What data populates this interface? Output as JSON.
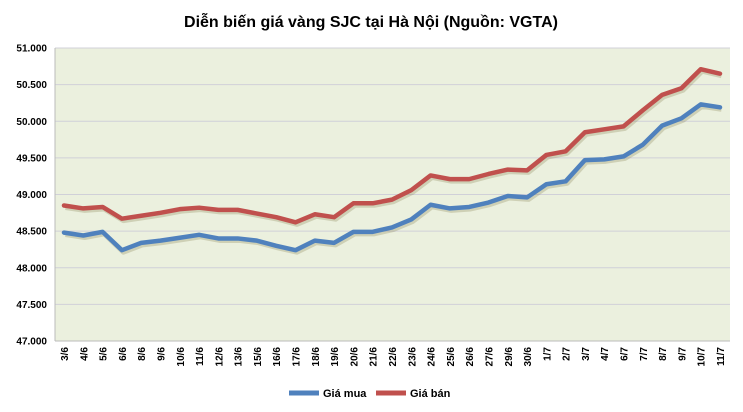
{
  "chart_data": {
    "type": "line",
    "title": "Diễn biến giá vàng SJC tại Hà Nội (Nguồn: VGTA)",
    "xlabel": "",
    "ylabel": "",
    "ylim": [
      47000,
      51000
    ],
    "yticks": [
      "47.000",
      "47.500",
      "48.000",
      "48.500",
      "49.000",
      "49.500",
      "50.000",
      "50.500",
      "51.000"
    ],
    "grid": true,
    "legend_position": "bottom",
    "plot_background": "#ebf0de",
    "categories": [
      "3/6",
      "4/6",
      "5/6",
      "6/6",
      "8/6",
      "9/6",
      "10/6",
      "11/6",
      "12/6",
      "13/6",
      "15/6",
      "16/6",
      "17/6",
      "18/6",
      "19/6",
      "20/6",
      "21/6",
      "22/6",
      "23/6",
      "24/6",
      "25/6",
      "26/6",
      "27/6",
      "29/6",
      "30/6",
      "1/7",
      "2/7",
      "3/7",
      "4/7",
      "6/7",
      "7/7",
      "8/7",
      "9/7",
      "10/7",
      "11/7"
    ],
    "series": [
      {
        "name": "Giá mua",
        "color": "#4f81bd",
        "values": [
          48480,
          48440,
          48490,
          48240,
          48340,
          48370,
          48410,
          48450,
          48400,
          48400,
          48370,
          48300,
          48240,
          48370,
          48340,
          48490,
          48490,
          48550,
          48660,
          48860,
          48810,
          48830,
          48890,
          48980,
          48960,
          49140,
          49180,
          49470,
          49480,
          49520,
          49680,
          49940,
          50040,
          50230,
          50190
        ]
      },
      {
        "name": "Giá bán",
        "color": "#c0504d",
        "values": [
          48850,
          48810,
          48830,
          48670,
          48710,
          48750,
          48800,
          48820,
          48790,
          48790,
          48740,
          48690,
          48620,
          48730,
          48690,
          48880,
          48880,
          48930,
          49060,
          49260,
          49210,
          49210,
          49280,
          49340,
          49330,
          49540,
          49590,
          49850,
          49890,
          49930,
          50150,
          50360,
          50450,
          50710,
          50650
        ]
      }
    ]
  }
}
